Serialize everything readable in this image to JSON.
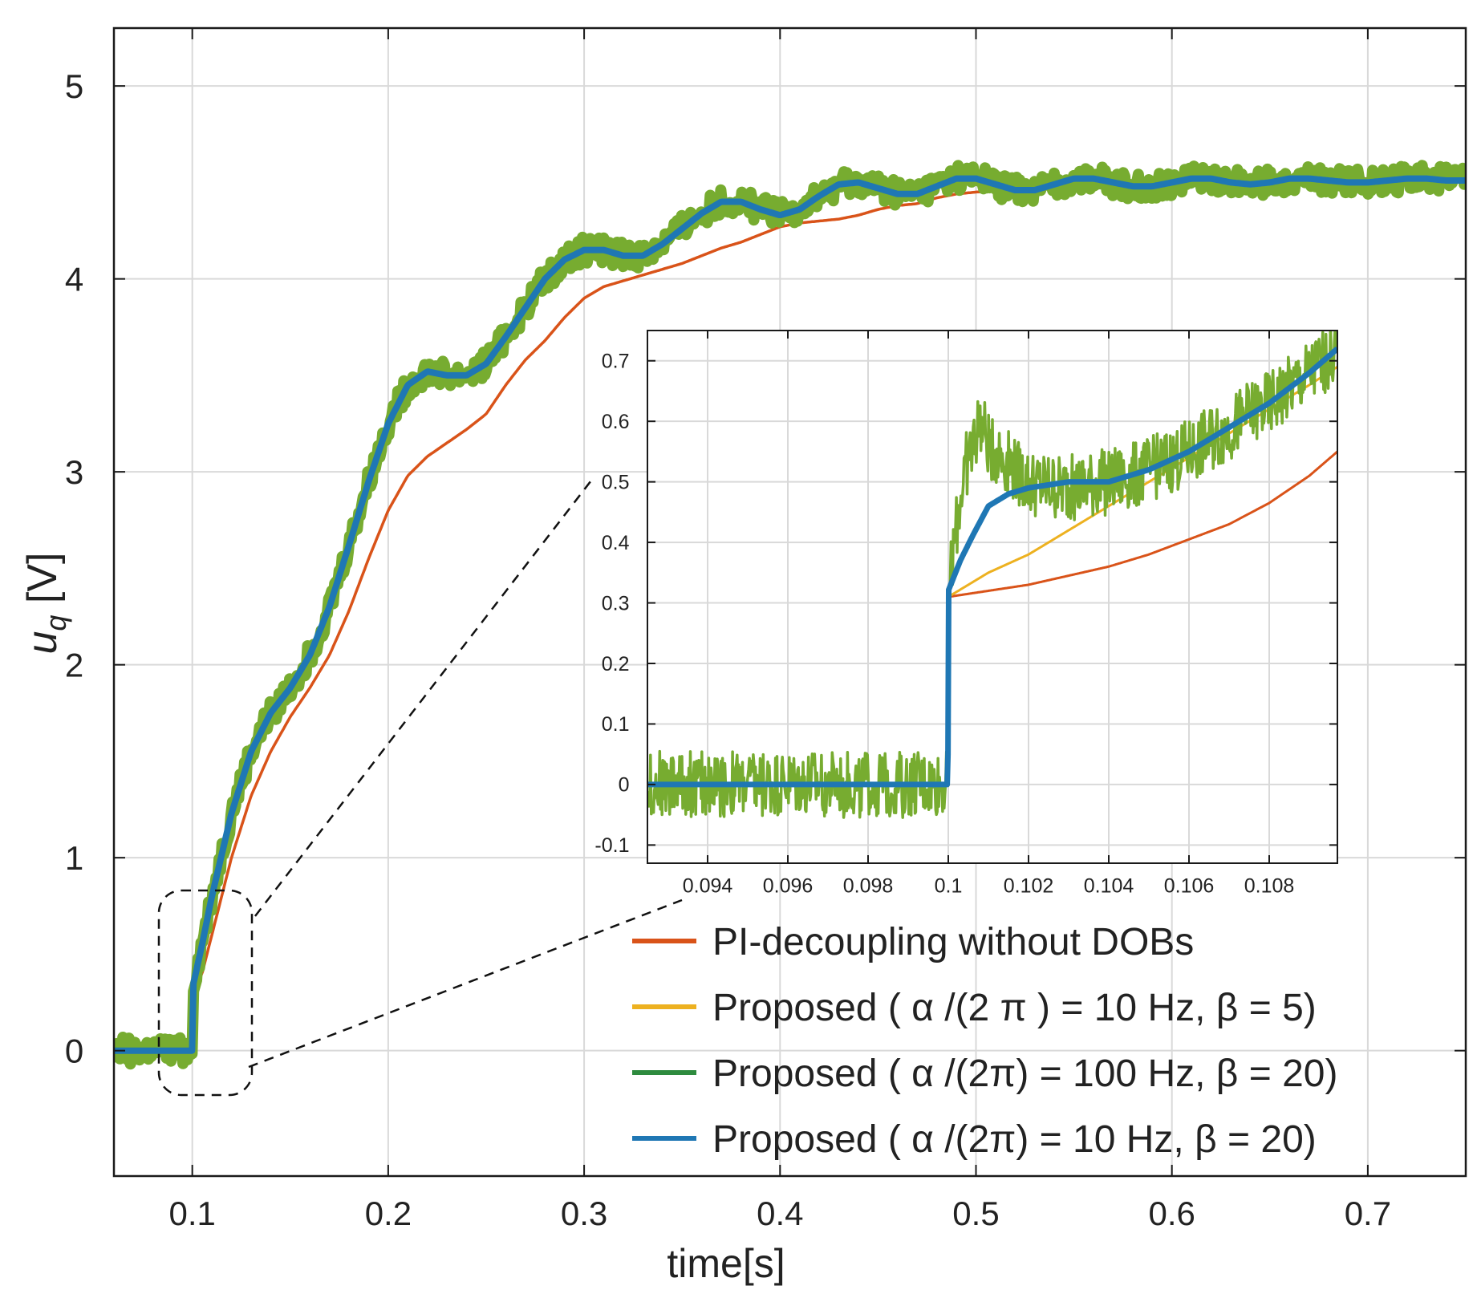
{
  "chart_data": {
    "type": "line",
    "xlabel": "time[s]",
    "ylabel_main": "u",
    "ylabel_sub": "q",
    "ylabel_unit": " [V]",
    "xlim": [
      0.06,
      0.75
    ],
    "ylim": [
      -0.65,
      5.3
    ],
    "xticks": [
      0.1,
      0.2,
      0.3,
      0.4,
      0.5,
      0.6,
      0.7
    ],
    "xtick_labels": [
      "0.1",
      "0.2",
      "0.3",
      "0.4",
      "0.5",
      "0.6",
      "0.7"
    ],
    "yticks": [
      0,
      1,
      2,
      3,
      4,
      5
    ],
    "ytick_labels": [
      "0",
      "1",
      "2",
      "3",
      "4",
      "5"
    ],
    "grid": true,
    "series": [
      {
        "name": "PI-decoupling without DOBs",
        "color": "#d95319",
        "x": [
          0.06,
          0.0999,
          0.1,
          0.105,
          0.11,
          0.12,
          0.13,
          0.14,
          0.15,
          0.16,
          0.17,
          0.18,
          0.19,
          0.2,
          0.21,
          0.22,
          0.23,
          0.24,
          0.25,
          0.26,
          0.27,
          0.28,
          0.29,
          0.3,
          0.31,
          0.32,
          0.33,
          0.34,
          0.35,
          0.36,
          0.37,
          0.38,
          0.39,
          0.4,
          0.41,
          0.42,
          0.43,
          0.44,
          0.45,
          0.46,
          0.47,
          0.48,
          0.49,
          0.5,
          0.52,
          0.55,
          0.6,
          0.65,
          0.7,
          0.75
        ],
        "y": [
          0,
          0,
          0.3,
          0.4,
          0.6,
          1.0,
          1.32,
          1.55,
          1.73,
          1.88,
          2.05,
          2.28,
          2.55,
          2.8,
          2.98,
          3.08,
          3.15,
          3.22,
          3.3,
          3.45,
          3.58,
          3.68,
          3.8,
          3.9,
          3.96,
          3.99,
          4.02,
          4.05,
          4.08,
          4.12,
          4.16,
          4.19,
          4.23,
          4.27,
          4.29,
          4.3,
          4.31,
          4.33,
          4.36,
          4.38,
          4.39,
          4.42,
          4.44,
          4.45,
          4.46,
          4.47,
          4.5,
          4.51,
          4.52,
          4.52
        ]
      },
      {
        "name": "Proposed ( α /(2 π ) = 10 Hz,  β  = 5)",
        "color": "#edb120",
        "x": [
          0.06,
          0.0999,
          0.1,
          0.105,
          0.11,
          0.12,
          0.13,
          0.14,
          0.15,
          0.16,
          0.17,
          0.18,
          0.19,
          0.2,
          0.21,
          0.22,
          0.23,
          0.24,
          0.25,
          0.26,
          0.27,
          0.28,
          0.29,
          0.3,
          0.31,
          0.32,
          0.33,
          0.34,
          0.35,
          0.36,
          0.37,
          0.38,
          0.39,
          0.4,
          0.41,
          0.42,
          0.43,
          0.44,
          0.45,
          0.46,
          0.47,
          0.48,
          0.49,
          0.5,
          0.51,
          0.52,
          0.53,
          0.54,
          0.55,
          0.56,
          0.57,
          0.58,
          0.59,
          0.6,
          0.61,
          0.62,
          0.63,
          0.64,
          0.65,
          0.66,
          0.67,
          0.68,
          0.69,
          0.7,
          0.71,
          0.72,
          0.73,
          0.74,
          0.75
        ],
        "y": [
          0,
          0,
          0.32,
          0.55,
          0.8,
          1.23,
          1.55,
          1.75,
          1.88,
          2.05,
          2.3,
          2.62,
          2.95,
          3.25,
          3.45,
          3.52,
          3.5,
          3.5,
          3.56,
          3.7,
          3.85,
          4.0,
          4.1,
          4.15,
          4.15,
          4.12,
          4.12,
          4.18,
          4.26,
          4.34,
          4.4,
          4.4,
          4.36,
          4.33,
          4.36,
          4.43,
          4.49,
          4.5,
          4.47,
          4.44,
          4.44,
          4.48,
          4.52,
          4.52,
          4.49,
          4.46,
          4.46,
          4.49,
          4.52,
          4.52,
          4.5,
          4.48,
          4.48,
          4.5,
          4.52,
          4.52,
          4.5,
          4.49,
          4.5,
          4.52,
          4.52,
          4.51,
          4.5,
          4.5,
          4.51,
          4.52,
          4.52,
          4.51,
          4.51
        ]
      },
      {
        "name": "Proposed ( α /(2π) = 100 Hz,  β  = 20)",
        "color": "#77ac30",
        "legend_color": "#2e8b3e",
        "noise": 0.07,
        "x": [
          0.06,
          0.0999,
          0.1,
          0.105,
          0.11,
          0.12,
          0.13,
          0.14,
          0.15,
          0.16,
          0.17,
          0.18,
          0.19,
          0.2,
          0.21,
          0.22,
          0.23,
          0.24,
          0.25,
          0.26,
          0.27,
          0.28,
          0.29,
          0.3,
          0.31,
          0.32,
          0.33,
          0.34,
          0.35,
          0.36,
          0.37,
          0.38,
          0.39,
          0.4,
          0.41,
          0.42,
          0.43,
          0.44,
          0.45,
          0.46,
          0.47,
          0.48,
          0.49,
          0.5,
          0.51,
          0.52,
          0.53,
          0.54,
          0.55,
          0.56,
          0.57,
          0.58,
          0.59,
          0.6,
          0.61,
          0.62,
          0.63,
          0.64,
          0.65,
          0.66,
          0.67,
          0.68,
          0.69,
          0.7,
          0.71,
          0.72,
          0.73,
          0.74,
          0.75
        ],
        "y": [
          0,
          0,
          0.32,
          0.55,
          0.8,
          1.23,
          1.55,
          1.75,
          1.88,
          2.05,
          2.3,
          2.62,
          2.95,
          3.25,
          3.45,
          3.52,
          3.5,
          3.5,
          3.56,
          3.7,
          3.85,
          4.0,
          4.1,
          4.15,
          4.15,
          4.12,
          4.12,
          4.18,
          4.26,
          4.34,
          4.4,
          4.4,
          4.36,
          4.33,
          4.36,
          4.43,
          4.49,
          4.5,
          4.47,
          4.44,
          4.44,
          4.48,
          4.52,
          4.52,
          4.49,
          4.46,
          4.46,
          4.49,
          4.52,
          4.52,
          4.5,
          4.48,
          4.48,
          4.5,
          4.52,
          4.52,
          4.5,
          4.49,
          4.5,
          4.52,
          4.52,
          4.51,
          4.5,
          4.5,
          4.51,
          4.52,
          4.52,
          4.51,
          4.51
        ]
      },
      {
        "name": "Proposed ( α /(2π) = 10 Hz,  β  = 20)",
        "color": "#1f77b4",
        "x": [
          0.06,
          0.0999,
          0.1,
          0.105,
          0.11,
          0.12,
          0.13,
          0.14,
          0.15,
          0.16,
          0.17,
          0.18,
          0.19,
          0.2,
          0.21,
          0.22,
          0.23,
          0.24,
          0.25,
          0.26,
          0.27,
          0.28,
          0.29,
          0.3,
          0.31,
          0.32,
          0.33,
          0.34,
          0.35,
          0.36,
          0.37,
          0.38,
          0.39,
          0.4,
          0.41,
          0.42,
          0.43,
          0.44,
          0.45,
          0.46,
          0.47,
          0.48,
          0.49,
          0.5,
          0.51,
          0.52,
          0.53,
          0.54,
          0.55,
          0.56,
          0.57,
          0.58,
          0.59,
          0.6,
          0.61,
          0.62,
          0.63,
          0.64,
          0.65,
          0.66,
          0.67,
          0.68,
          0.69,
          0.7,
          0.71,
          0.72,
          0.73,
          0.74,
          0.75
        ],
        "y": [
          0,
          0,
          0.32,
          0.55,
          0.8,
          1.23,
          1.55,
          1.75,
          1.88,
          2.05,
          2.3,
          2.62,
          2.95,
          3.25,
          3.45,
          3.52,
          3.5,
          3.5,
          3.56,
          3.7,
          3.85,
          4.0,
          4.1,
          4.15,
          4.15,
          4.12,
          4.12,
          4.18,
          4.26,
          4.34,
          4.4,
          4.4,
          4.36,
          4.33,
          4.36,
          4.43,
          4.49,
          4.5,
          4.47,
          4.44,
          4.44,
          4.48,
          4.52,
          4.52,
          4.49,
          4.46,
          4.46,
          4.49,
          4.52,
          4.52,
          4.5,
          4.48,
          4.48,
          4.5,
          4.52,
          4.52,
          4.5,
          4.49,
          4.5,
          4.52,
          4.52,
          4.51,
          4.5,
          4.5,
          4.51,
          4.52,
          4.52,
          4.51,
          4.51
        ]
      }
    ],
    "inset": {
      "xlim": [
        0.0925,
        0.1097
      ],
      "ylim": [
        -0.13,
        0.75
      ],
      "xticks": [
        0.094,
        0.096,
        0.098,
        0.1,
        0.102,
        0.104,
        0.106,
        0.108
      ],
      "xtick_labels": [
        "0.094",
        "0.096",
        "0.098",
        "0.1",
        "0.102",
        "0.104",
        "0.106",
        "0.108"
      ],
      "yticks": [
        -0.1,
        0,
        0.1,
        0.2,
        0.3,
        0.4,
        0.5,
        0.6,
        0.7
      ],
      "ytick_labels": [
        "-0.1",
        "0",
        "0.1",
        "0.2",
        "0.3",
        "0.4",
        "0.5",
        "0.6",
        "0.7"
      ],
      "series": [
        {
          "name": "PI-decoupling without DOBs",
          "color": "#d95319",
          "x": [
            0.0925,
            0.09999,
            0.1,
            0.101,
            0.102,
            0.103,
            0.104,
            0.105,
            0.106,
            0.107,
            0.108,
            0.109,
            0.1097
          ],
          "y": [
            0,
            0,
            0.31,
            0.32,
            0.33,
            0.345,
            0.36,
            0.38,
            0.405,
            0.43,
            0.465,
            0.51,
            0.55
          ]
        },
        {
          "name": "Proposed ( α /(2 π ) = 10 Hz,  β  = 5)",
          "color": "#edb120",
          "x": [
            0.0925,
            0.09999,
            0.1,
            0.101,
            0.102,
            0.103,
            0.104,
            0.105,
            0.106,
            0.107,
            0.108,
            0.109,
            0.1097
          ],
          "y": [
            0,
            0,
            0.31,
            0.35,
            0.38,
            0.42,
            0.46,
            0.5,
            0.54,
            0.58,
            0.62,
            0.66,
            0.69
          ]
        },
        {
          "name": "Proposed ( α /(2π) = 100 Hz,  β  = 20)",
          "color": "#77ac30",
          "noise": 0.055,
          "x": [
            0.0925,
            0.09999,
            0.1,
            0.1004,
            0.1008,
            0.101,
            0.102,
            0.103,
            0.104,
            0.105,
            0.106,
            0.107,
            0.108,
            0.109,
            0.1097
          ],
          "y": [
            0,
            0,
            0.32,
            0.52,
            0.6,
            0.56,
            0.5,
            0.49,
            0.5,
            0.52,
            0.55,
            0.59,
            0.63,
            0.68,
            0.72
          ]
        },
        {
          "name": "Proposed ( α /(2π) = 10 Hz,  β  = 20)",
          "color": "#1f77b4",
          "x": [
            0.0925,
            0.09999,
            0.1,
            0.1003,
            0.1006,
            0.101,
            0.1015,
            0.102,
            0.103,
            0.104,
            0.105,
            0.106,
            0.107,
            0.108,
            0.109,
            0.1097
          ],
          "y": [
            0,
            0,
            0.32,
            0.37,
            0.41,
            0.46,
            0.48,
            0.49,
            0.5,
            0.5,
            0.52,
            0.55,
            0.59,
            0.63,
            0.68,
            0.72
          ]
        }
      ]
    },
    "legend": {
      "position": "bottom-right",
      "entries": [
        {
          "label": "PI-decoupling without DOBs",
          "color": "#d95319"
        },
        {
          "label": "Proposed ( α /(2 π ) = 10 Hz,  β  = 5)",
          "color": "#edb120"
        },
        {
          "label": "Proposed ( α /(2π) = 100 Hz,  β  = 20)",
          "color": "#2e8b3e"
        },
        {
          "label": "Proposed ( α /(2π) = 10 Hz,  β  = 20)",
          "color": "#1f77b4"
        }
      ]
    },
    "annotation": "dashed zoom region around the step at 0.1 s magnified in the inset"
  }
}
